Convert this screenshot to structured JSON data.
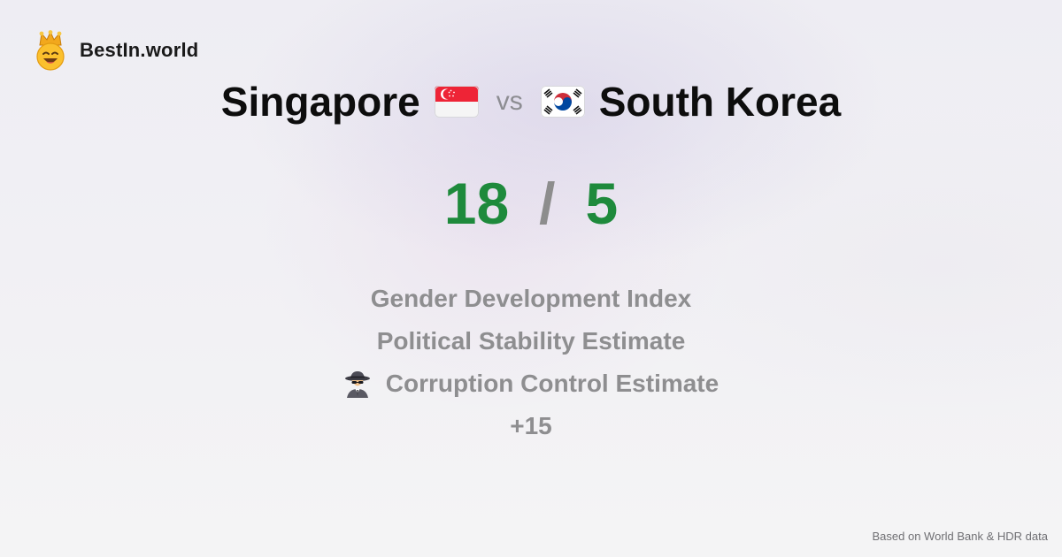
{
  "brand": {
    "name": "BestIn.world",
    "logo_icon": "crown-smiley-icon"
  },
  "comparison": {
    "left_country": "Singapore",
    "left_flag_icon": "singapore-flag-icon",
    "vs_label": "vs",
    "right_country": "South Korea",
    "right_flag_icon": "south-korea-flag-icon"
  },
  "scores": {
    "left": "18",
    "separator": "/",
    "right": "5",
    "color": "#1e8a3c"
  },
  "metrics": [
    {
      "label": "Gender Development Index",
      "icon": ""
    },
    {
      "label": "Political Stability Estimate",
      "icon": ""
    },
    {
      "label": "Corruption Control Estimate",
      "icon": "spy-icon"
    }
  ],
  "more_label": "+15",
  "footer": {
    "source": "Based on World Bank & HDR data"
  }
}
